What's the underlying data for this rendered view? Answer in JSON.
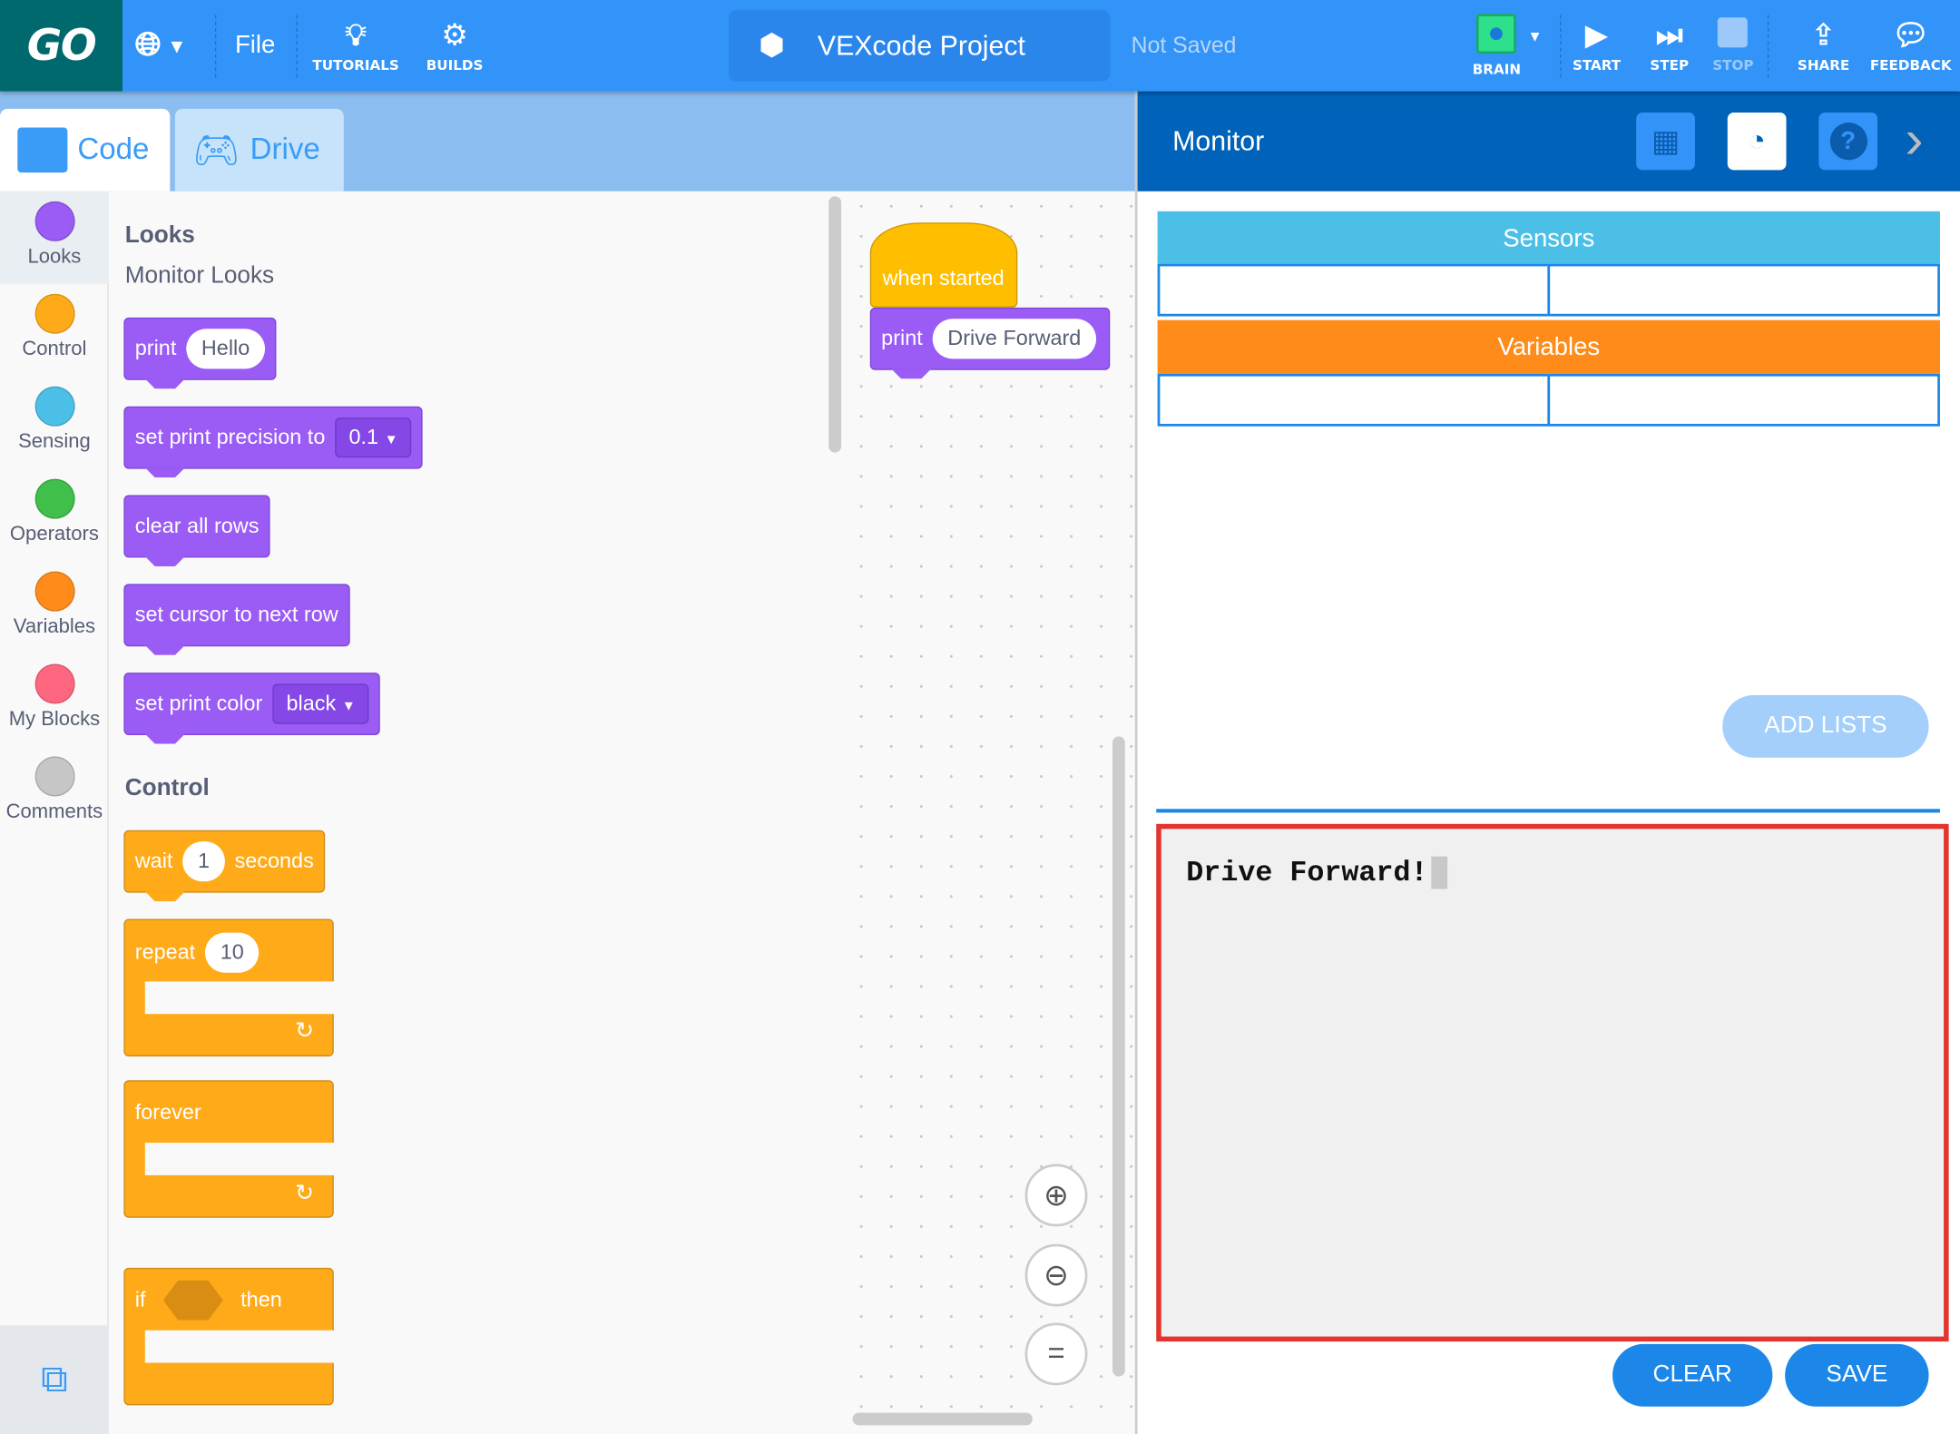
{
  "topbar": {
    "logo": "GO",
    "file": "File",
    "tutorials": "TUTORIALS",
    "builds": "BUILDS",
    "project_title": "VEXcode Project",
    "save_status": "Not Saved",
    "brain": "BRAIN",
    "start": "START",
    "step": "STEP",
    "stop": "STOP",
    "share": "SHARE",
    "feedback": "FEEDBACK"
  },
  "tabs": [
    {
      "label": "Code"
    },
    {
      "label": "Drive"
    }
  ],
  "categories": [
    {
      "label": "Looks",
      "color": "#9a5cf5"
    },
    {
      "label": "Control",
      "color": "#ffab19"
    },
    {
      "label": "Sensing",
      "color": "#4cbfe6"
    },
    {
      "label": "Operators",
      "color": "#40bf4a"
    },
    {
      "label": "Variables",
      "color": "#ff8c1a"
    },
    {
      "label": "My Blocks",
      "color": "#ff6680"
    },
    {
      "label": "Comments",
      "color": "#c6c6c6"
    }
  ],
  "flyout": {
    "looks_header": "Looks",
    "looks_sub": "Monitor Looks",
    "print": {
      "label": "print",
      "value": "Hello"
    },
    "precision": {
      "label": "set print precision to",
      "value": "0.1"
    },
    "clear_rows": "clear all rows",
    "next_row": "set cursor to next row",
    "print_color": {
      "label": "set print color",
      "value": "black"
    },
    "control_header": "Control",
    "wait": {
      "label": "wait",
      "value": "1",
      "unit": "seconds"
    },
    "repeat": {
      "label": "repeat",
      "value": "10"
    },
    "forever": "forever",
    "if": {
      "label": "if",
      "then": "then"
    }
  },
  "workspace": {
    "hat": "when started",
    "print": {
      "label": "print",
      "value": "Drive Forward"
    }
  },
  "monitor": {
    "title": "Monitor",
    "sensors": "Sensors",
    "variables": "Variables",
    "add_lists": "ADD LISTS",
    "console_text": "Drive Forward!",
    "clear": "CLEAR",
    "save": "SAVE"
  }
}
